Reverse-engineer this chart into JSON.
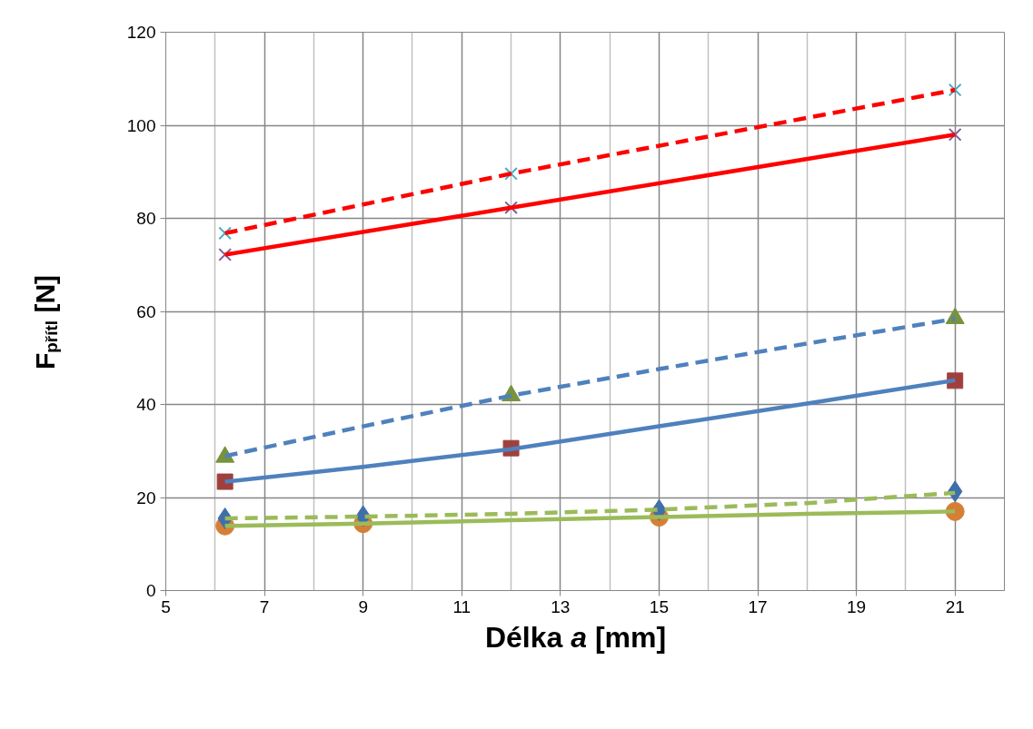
{
  "chart_data": {
    "type": "line",
    "xlabel": "Délka a [mm]",
    "ylabel": "F$_{přítl}$ [N]",
    "xlim": [
      5,
      22
    ],
    "xticks": [
      5,
      7,
      9,
      11,
      13,
      15,
      17,
      19,
      21
    ],
    "ylim": [
      0,
      120
    ],
    "yticks": [
      0,
      20,
      40,
      60,
      80,
      100,
      120
    ],
    "grid": true,
    "series": [
      {
        "color": "#9bbb59",
        "line_style": "dashed",
        "marker": "none",
        "x": [
          6.2,
          9,
          12,
          15,
          18,
          21
        ],
        "values": [
          15.5,
          15.9,
          16.5,
          17.4,
          18.8,
          21.0
        ]
      },
      {
        "color": "#9bbb59",
        "line_style": "solid",
        "marker": "none",
        "x": [
          6.2,
          9,
          12,
          15,
          18,
          21
        ],
        "values": [
          13.9,
          14.4,
          15.1,
          15.8,
          16.5,
          17.0
        ]
      },
      {
        "color": "#4f81bd",
        "line_style": "dashed",
        "marker": "none",
        "x": [
          6.2,
          9,
          12,
          15,
          18,
          21
        ],
        "values": [
          28.9,
          35.3,
          41.9,
          47.6,
          53.1,
          58.4
        ]
      },
      {
        "color": "#4f81bd",
        "line_style": "solid",
        "marker": "none",
        "x": [
          6.2,
          9,
          12,
          15,
          18,
          21
        ],
        "values": [
          23.4,
          26.6,
          30.4,
          35.3,
          40.2,
          45.2
        ]
      },
      {
        "color": "#ff0000",
        "line_style": "dashed",
        "marker": "none",
        "x": [
          6.2,
          12,
          21
        ],
        "values": [
          76.8,
          89.6,
          107.6
        ]
      },
      {
        "color": "#ff0000",
        "line_style": "solid",
        "marker": "none",
        "x": [
          6.2,
          12,
          21
        ],
        "values": [
          72.2,
          82.3,
          98.0
        ]
      },
      {
        "type": "scatter",
        "color": "#3f6fab",
        "marker": "diamond",
        "x": [
          6.2,
          9,
          15,
          21
        ],
        "values": [
          15.5,
          16.0,
          17.3,
          21.3
        ]
      },
      {
        "type": "scatter",
        "color": "#d57f36",
        "marker": "circle",
        "x": [
          6.2,
          9,
          15,
          21
        ],
        "values": [
          13.9,
          14.4,
          15.8,
          17.0
        ]
      },
      {
        "type": "scatter",
        "color": "#a0403d",
        "marker": "square",
        "x": [
          6.2,
          12,
          21
        ],
        "values": [
          23.4,
          30.6,
          45.1
        ]
      },
      {
        "type": "scatter",
        "color": "#77933c",
        "marker": "triangle",
        "x": [
          6.2,
          12,
          21
        ],
        "values": [
          28.7,
          41.9,
          58.5
        ]
      },
      {
        "type": "scatter",
        "color": "#7e5a9b",
        "marker": "cross",
        "x": [
          6.2,
          12,
          21
        ],
        "values": [
          72.2,
          82.3,
          98.0
        ]
      },
      {
        "type": "scatter",
        "color": "#4bacc6",
        "marker": "cross",
        "x": [
          6.2,
          12,
          21
        ],
        "values": [
          76.8,
          89.6,
          107.6
        ]
      }
    ]
  }
}
